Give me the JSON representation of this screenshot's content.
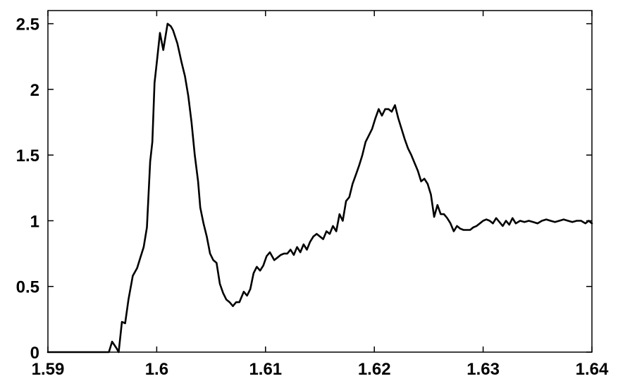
{
  "chart_data": {
    "type": "line",
    "title": "",
    "xlabel": "",
    "ylabel": "",
    "xlim": [
      1.59,
      1.64
    ],
    "ylim": [
      0,
      2.6
    ],
    "grid": false,
    "legend": "none",
    "x_ticks": [
      {
        "value": 1.59,
        "label": "1.59"
      },
      {
        "value": 1.6,
        "label": "1.6"
      },
      {
        "value": 1.61,
        "label": "1.61"
      },
      {
        "value": 1.62,
        "label": "1.62"
      },
      {
        "value": 1.63,
        "label": "1.63"
      },
      {
        "value": 1.64,
        "label": "1.64"
      }
    ],
    "y_ticks": [
      {
        "value": 0,
        "label": "0"
      },
      {
        "value": 0.5,
        "label": "0.5"
      },
      {
        "value": 1,
        "label": "1"
      },
      {
        "value": 1.5,
        "label": "1.5"
      },
      {
        "value": 2,
        "label": "2"
      },
      {
        "value": 2.5,
        "label": "2.5"
      }
    ],
    "series": [
      {
        "color": "#000000",
        "x": [
          1.59,
          1.5956,
          1.5959,
          1.5963,
          1.5965,
          1.5968,
          1.5971,
          1.5974,
          1.5978,
          1.5982,
          1.5985,
          1.5988,
          1.5991,
          1.5994,
          1.5996,
          1.5998,
          1.6,
          1.6003,
          1.6006,
          1.601,
          1.6013,
          1.6015,
          1.6019,
          1.6023,
          1.6026,
          1.6029,
          1.6032,
          1.6035,
          1.6038,
          1.604,
          1.6043,
          1.6046,
          1.6049,
          1.6052,
          1.6055,
          1.6058,
          1.6061,
          1.6064,
          1.6067,
          1.607,
          1.6073,
          1.6076,
          1.608,
          1.6083,
          1.6086,
          1.6089,
          1.6092,
          1.6095,
          1.6098,
          1.6101,
          1.6104,
          1.6108,
          1.6111,
          1.6114,
          1.6117,
          1.612,
          1.6123,
          1.6126,
          1.6129,
          1.6132,
          1.6135,
          1.6138,
          1.6141,
          1.6144,
          1.6147,
          1.615,
          1.6153,
          1.6156,
          1.6159,
          1.6162,
          1.6165,
          1.6168,
          1.6171,
          1.6174,
          1.6177,
          1.618,
          1.6183,
          1.6186,
          1.6189,
          1.6192,
          1.6195,
          1.6198,
          1.6201,
          1.6204,
          1.6207,
          1.621,
          1.6213,
          1.6216,
          1.6219,
          1.6222,
          1.6225,
          1.6228,
          1.6231,
          1.6234,
          1.6237,
          1.624,
          1.6243,
          1.6246,
          1.6249,
          1.6252,
          1.6255,
          1.6258,
          1.6261,
          1.6264,
          1.6267,
          1.627,
          1.6273,
          1.6276,
          1.6279,
          1.6282,
          1.6285,
          1.6288,
          1.6291,
          1.6294,
          1.6297,
          1.63,
          1.6303,
          1.6306,
          1.6309,
          1.6312,
          1.6315,
          1.6318,
          1.6321,
          1.6324,
          1.6327,
          1.633,
          1.6334,
          1.6338,
          1.6342,
          1.6346,
          1.635,
          1.6354,
          1.6358,
          1.6362,
          1.6366,
          1.637,
          1.6374,
          1.6378,
          1.6382,
          1.6386,
          1.639,
          1.6394,
          1.6397,
          1.64
        ],
        "y": [
          0.0,
          0.0,
          0.08,
          0.03,
          0.0,
          0.23,
          0.22,
          0.4,
          0.58,
          0.64,
          0.72,
          0.8,
          0.95,
          1.45,
          1.6,
          2.05,
          2.2,
          2.43,
          2.3,
          2.5,
          2.48,
          2.45,
          2.35,
          2.2,
          2.1,
          1.95,
          1.75,
          1.5,
          1.3,
          1.1,
          0.98,
          0.88,
          0.75,
          0.7,
          0.68,
          0.52,
          0.45,
          0.4,
          0.38,
          0.35,
          0.38,
          0.38,
          0.46,
          0.43,
          0.48,
          0.6,
          0.65,
          0.62,
          0.66,
          0.73,
          0.76,
          0.7,
          0.72,
          0.74,
          0.75,
          0.75,
          0.78,
          0.74,
          0.8,
          0.76,
          0.82,
          0.78,
          0.84,
          0.88,
          0.9,
          0.88,
          0.86,
          0.92,
          0.9,
          0.96,
          0.92,
          1.05,
          1.0,
          1.15,
          1.18,
          1.28,
          1.35,
          1.42,
          1.5,
          1.6,
          1.65,
          1.7,
          1.78,
          1.85,
          1.8,
          1.85,
          1.85,
          1.83,
          1.88,
          1.78,
          1.7,
          1.62,
          1.55,
          1.5,
          1.44,
          1.38,
          1.3,
          1.32,
          1.28,
          1.2,
          1.03,
          1.12,
          1.05,
          1.05,
          1.02,
          0.98,
          0.92,
          0.96,
          0.94,
          0.93,
          0.93,
          0.93,
          0.95,
          0.96,
          0.98,
          1.0,
          1.01,
          1.0,
          0.98,
          1.02,
          0.99,
          0.96,
          1.0,
          0.97,
          1.02,
          0.98,
          1.0,
          0.99,
          1.0,
          0.99,
          0.98,
          1.0,
          1.01,
          1.0,
          0.99,
          1.0,
          1.01,
          1.0,
          0.99,
          1.0,
          1.0,
          0.98,
          1.0,
          0.98
        ]
      }
    ]
  }
}
